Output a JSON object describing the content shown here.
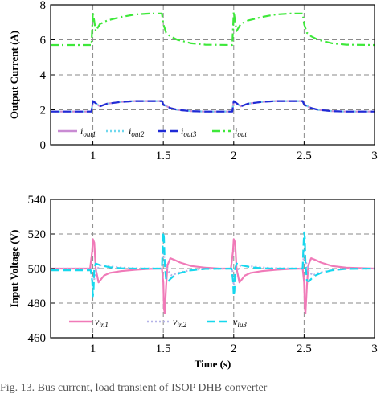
{
  "chart_data": [
    {
      "type": "line",
      "ylabel": "Output Current (A)",
      "xlabel": "",
      "xlim": [
        0.7,
        3.0
      ],
      "ylim": [
        0,
        8
      ],
      "xticks": [
        1,
        1.5,
        2,
        2.5,
        3
      ],
      "xtick_labels": [
        "1",
        "1.5",
        "2",
        "2.5",
        "3"
      ],
      "yticks": [
        0,
        2,
        4,
        6,
        8
      ],
      "ytick_labels": [
        "0",
        "2",
        "4",
        "6",
        "8"
      ],
      "grid": true,
      "legend_position": "bottom",
      "series": [
        {
          "name": "iout1",
          "base": "i",
          "sub": "out1",
          "color": "#c98bd3",
          "dash": "solid",
          "x": [
            0.7,
            0.99,
            1.0,
            1.05,
            1.1,
            1.2,
            1.3,
            1.4,
            1.49,
            1.5,
            1.55,
            1.6,
            1.7,
            1.8,
            1.99,
            2.0,
            2.05,
            2.1,
            2.2,
            2.3,
            2.4,
            2.49,
            2.5,
            2.55,
            2.6,
            2.7,
            2.8,
            3.0
          ],
          "y": [
            1.9,
            1.9,
            2.5,
            2.2,
            2.35,
            2.45,
            2.5,
            2.5,
            2.5,
            2.3,
            2.1,
            2.0,
            1.92,
            1.9,
            1.9,
            2.5,
            2.2,
            2.35,
            2.45,
            2.5,
            2.5,
            2.5,
            2.3,
            2.1,
            2.0,
            1.92,
            1.9,
            1.9
          ]
        },
        {
          "name": "iout2",
          "base": "i",
          "sub": "out2",
          "color": "#6fd8ee",
          "dash": "dot",
          "x": [
            0.7,
            0.99,
            1.0,
            1.05,
            1.1,
            1.2,
            1.3,
            1.4,
            1.49,
            1.5,
            1.55,
            1.6,
            1.7,
            1.8,
            1.99,
            2.0,
            2.05,
            2.1,
            2.2,
            2.3,
            2.4,
            2.49,
            2.5,
            2.55,
            2.6,
            2.7,
            2.8,
            3.0
          ],
          "y": [
            1.9,
            1.9,
            2.5,
            2.2,
            2.35,
            2.45,
            2.5,
            2.5,
            2.5,
            2.3,
            2.1,
            2.0,
            1.92,
            1.9,
            1.9,
            2.5,
            2.2,
            2.35,
            2.45,
            2.5,
            2.5,
            2.5,
            2.3,
            2.1,
            2.0,
            1.92,
            1.9,
            1.9
          ]
        },
        {
          "name": "iout3",
          "base": "i",
          "sub": "out3",
          "color": "#1f2ad6",
          "dash": "dash",
          "x": [
            0.7,
            0.99,
            1.0,
            1.05,
            1.1,
            1.2,
            1.3,
            1.4,
            1.49,
            1.5,
            1.55,
            1.6,
            1.7,
            1.8,
            1.99,
            2.0,
            2.05,
            2.1,
            2.2,
            2.3,
            2.4,
            2.49,
            2.5,
            2.55,
            2.6,
            2.7,
            2.8,
            3.0
          ],
          "y": [
            1.9,
            1.9,
            2.5,
            2.2,
            2.35,
            2.45,
            2.5,
            2.5,
            2.5,
            2.3,
            2.1,
            2.0,
            1.92,
            1.9,
            1.9,
            2.5,
            2.2,
            2.35,
            2.45,
            2.5,
            2.5,
            2.5,
            2.3,
            2.1,
            2.0,
            1.92,
            1.9,
            1.9
          ]
        },
        {
          "name": "iout",
          "base": "i",
          "sub": "out",
          "color": "#3ee83a",
          "dash": "dashdot",
          "x": [
            0.7,
            0.99,
            1.0,
            1.02,
            1.05,
            1.1,
            1.2,
            1.3,
            1.4,
            1.49,
            1.5,
            1.52,
            1.55,
            1.6,
            1.7,
            1.8,
            1.99,
            2.0,
            2.02,
            2.05,
            2.1,
            2.2,
            2.3,
            2.4,
            2.49,
            2.5,
            2.52,
            2.55,
            2.6,
            2.7,
            2.8,
            3.0
          ],
          "y": [
            5.7,
            5.7,
            7.6,
            6.5,
            6.9,
            7.1,
            7.3,
            7.45,
            7.5,
            7.5,
            6.9,
            6.4,
            6.2,
            6.0,
            5.8,
            5.72,
            5.7,
            7.6,
            6.5,
            6.9,
            7.1,
            7.3,
            7.45,
            7.5,
            7.5,
            6.9,
            6.4,
            6.2,
            6.0,
            5.8,
            5.72,
            5.7
          ]
        }
      ]
    },
    {
      "type": "line",
      "ylabel": "Input Voltage (V)",
      "xlabel": "Time (s)",
      "xlim": [
        0.7,
        3.0
      ],
      "ylim": [
        460,
        540
      ],
      "xticks": [
        1,
        1.5,
        2,
        2.5,
        3
      ],
      "xtick_labels": [
        "1",
        "1.5",
        "2",
        "2.5",
        "3"
      ],
      "yticks": [
        460,
        480,
        500,
        520,
        540
      ],
      "ytick_labels": [
        "460",
        "480",
        "500",
        "520",
        "540"
      ],
      "grid": true,
      "legend_position": "bottom",
      "series": [
        {
          "name": "vin1",
          "base": "v",
          "sub": "in1",
          "color": "#f07ab8",
          "dash": "solid",
          "x": [
            0.7,
            0.98,
            0.995,
            1.0,
            1.01,
            1.02,
            1.04,
            1.06,
            1.08,
            1.12,
            1.2,
            1.3,
            1.4,
            1.49,
            1.5,
            1.505,
            1.51,
            1.52,
            1.53,
            1.55,
            1.58,
            1.62,
            1.7,
            1.8,
            1.9,
            1.98,
            1.995,
            2.0,
            2.01,
            2.02,
            2.04,
            2.06,
            2.08,
            2.12,
            2.2,
            2.3,
            2.4,
            2.49,
            2.5,
            2.505,
            2.51,
            2.52,
            2.53,
            2.55,
            2.58,
            2.62,
            2.7,
            2.8,
            3.0
          ],
          "y": [
            500,
            500,
            510,
            517,
            515,
            500,
            492,
            494,
            496,
            497.5,
            498.5,
            499.3,
            499.8,
            500,
            492,
            477,
            474,
            490,
            502,
            506,
            505,
            503.5,
            501.5,
            500.5,
            500,
            500,
            510,
            517,
            515,
            500,
            492,
            494,
            496,
            497.5,
            498.5,
            499.3,
            499.8,
            500,
            492,
            477,
            474,
            490,
            502,
            506,
            505,
            503.5,
            501.5,
            500.5,
            500
          ]
        },
        {
          "name": "vin2",
          "base": "v",
          "sub": "in2",
          "color": "#b5b3e8",
          "dash": "dot",
          "x": [
            0.7,
            0.99,
            1.0,
            1.02,
            1.05,
            1.1,
            1.2,
            1.3,
            1.49,
            1.5,
            1.51,
            1.53,
            1.56,
            1.6,
            1.7,
            1.8,
            1.99,
            2.0,
            2.02,
            2.05,
            2.1,
            2.2,
            2.3,
            2.49,
            2.5,
            2.51,
            2.53,
            2.56,
            2.6,
            2.7,
            2.8,
            3.0
          ],
          "y": [
            500,
            500,
            490,
            498,
            502,
            501.5,
            500.6,
            500.2,
            500,
            510,
            505,
            499,
            496,
            497.5,
            499.2,
            499.8,
            500,
            490,
            498,
            502,
            501.5,
            500.6,
            500.2,
            500,
            510,
            505,
            499,
            496,
            497.5,
            499.2,
            499.8,
            500
          ]
        },
        {
          "name": "viu3",
          "base": "v",
          "sub": "iu3",
          "color": "#16d8ee",
          "dash": "dash",
          "x": [
            0.7,
            0.985,
            0.995,
            1.0,
            1.005,
            1.01,
            1.02,
            1.035,
            1.05,
            1.08,
            1.12,
            1.2,
            1.3,
            1.49,
            1.495,
            1.5,
            1.505,
            1.51,
            1.52,
            1.535,
            1.55,
            1.58,
            1.62,
            1.7,
            1.8,
            1.985,
            1.995,
            2.0,
            2.005,
            2.01,
            2.02,
            2.035,
            2.05,
            2.08,
            2.12,
            2.2,
            2.3,
            2.49,
            2.495,
            2.5,
            2.505,
            2.51,
            2.52,
            2.535,
            2.55,
            2.58,
            2.62,
            2.7,
            2.8,
            3.0
          ],
          "y": [
            499,
            499,
            493,
            484,
            487,
            500,
            503,
            502.5,
            502,
            501.5,
            500.8,
            500.2,
            500,
            500,
            512,
            521,
            518,
            503,
            493,
            492.5,
            494,
            496,
            497.5,
            499,
            499.8,
            500,
            493,
            484,
            487,
            500,
            503,
            502.5,
            502,
            501.5,
            500.8,
            500.2,
            500,
            500,
            512,
            521,
            518,
            503,
            493,
            492.5,
            494,
            496,
            497.5,
            499,
            499.8,
            500
          ]
        }
      ]
    }
  ],
  "caption": "Fig. 13.     Bus current, load transient of ISOP DHB converter"
}
